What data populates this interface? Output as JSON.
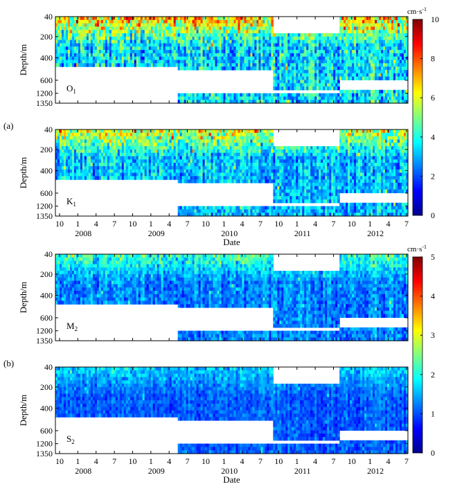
{
  "chart_data": [
    {
      "type": "heatmap",
      "group_label": "(a)",
      "colorbar": {
        "unit": "cm·s",
        "unit_sup": "-1",
        "ticks": [
          0,
          2,
          4,
          6,
          8,
          10
        ],
        "min": 0,
        "max": 10
      },
      "panels": [
        {
          "constituent": "O",
          "subscript": "1",
          "ylabel": "Depth/m",
          "yticks": [
            "40",
            "200",
            "400",
            "600",
            "1200",
            "1350"
          ],
          "intensity": 0.55,
          "hot": 0.35
        },
        {
          "constituent": "K",
          "subscript": "1",
          "ylabel": "Depth/m",
          "yticks": [
            "40",
            "200",
            "400",
            "600",
            "1200",
            "1350"
          ],
          "intensity": 0.45,
          "hot": 0.3
        }
      ],
      "x_months": [
        "10",
        "1",
        "4",
        "7",
        "10",
        "1",
        "4",
        "7",
        "10",
        "1",
        "4",
        "7",
        "10",
        "1",
        "4",
        "7",
        "10",
        "1",
        "4",
        "7"
      ],
      "x_years": [
        "2008",
        "2009",
        "2010",
        "2011",
        "2012"
      ],
      "xlabel": "Date"
    },
    {
      "type": "heatmap",
      "group_label": "(b)",
      "colorbar": {
        "unit": "cm·s",
        "unit_sup": "-1",
        "ticks": [
          0,
          1,
          2,
          3,
          4,
          5
        ],
        "min": 0,
        "max": 5
      },
      "panels": [
        {
          "constituent": "M",
          "subscript": "2",
          "ylabel": "Depth/m",
          "yticks": [
            "40",
            "200",
            "400",
            "600",
            "1200",
            "1350"
          ],
          "intensity": 0.3,
          "hot": 0.2
        },
        {
          "constituent": "S",
          "subscript": "2",
          "ylabel": "Depth/m",
          "yticks": [
            "40",
            "200",
            "400",
            "600",
            "1200",
            "1350"
          ],
          "intensity": 0.22,
          "hot": 0.12
        }
      ],
      "x_months": [
        "10",
        "1",
        "4",
        "7",
        "10",
        "1",
        "4",
        "7",
        "10",
        "1",
        "4",
        "7",
        "10",
        "1",
        "4",
        "7",
        "10",
        "1",
        "4",
        "7"
      ],
      "x_years": [
        "2008",
        "2009",
        "2010",
        "2011",
        "2012"
      ],
      "xlabel": "Date"
    }
  ]
}
